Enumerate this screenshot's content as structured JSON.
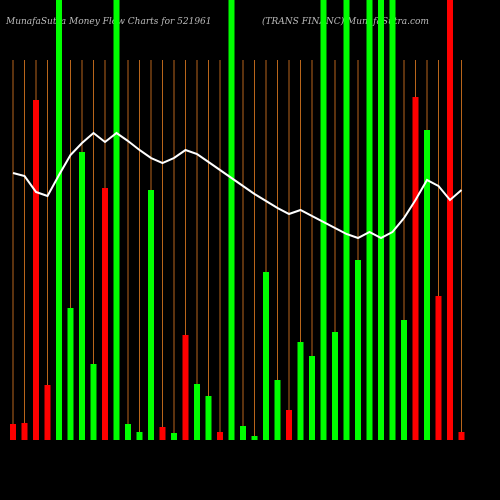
{
  "chart_data": {
    "type": "bar",
    "title": "MunafaSutra  Money Flow  Charts for 521961",
    "subtitle": "(TRANS FINANC) MunafaSutra.com",
    "ylim": [
      0,
      440
    ],
    "colors": {
      "up": "#00ff00",
      "down": "#ff0000",
      "guide": "#b8651b",
      "line": "#ffffff"
    },
    "series": [
      {
        "name": "money-flow",
        "directions": [
          "down",
          "down",
          "down",
          "down",
          "up",
          "up",
          "up",
          "up",
          "down",
          "up",
          "up",
          "up",
          "up",
          "down",
          "up",
          "down",
          "up",
          "up",
          "down",
          "up",
          "up",
          "up",
          "up",
          "up",
          "down",
          "up",
          "up",
          "up",
          "up",
          "up",
          "up",
          "up",
          "up",
          "up",
          "up",
          "down",
          "up",
          "down",
          "down",
          "down"
        ],
        "values": [
          16,
          17,
          340,
          55,
          440,
          132,
          288,
          76,
          252,
          440,
          16,
          8,
          250,
          13,
          7,
          105,
          56,
          44,
          8,
          440,
          14,
          4,
          168,
          60,
          30,
          98,
          84,
          440,
          108,
          440,
          180,
          440,
          440,
          440,
          120,
          343,
          310,
          144,
          440,
          8
        ]
      },
      {
        "name": "price",
        "values": [
          267,
          264,
          248,
          244,
          265,
          285,
          297,
          307,
          298,
          307,
          299,
          290,
          282,
          277,
          282,
          290,
          286,
          278,
          270,
          262,
          254,
          246,
          239,
          232,
          226,
          230,
          224,
          218,
          212,
          206,
          202,
          208,
          202,
          208,
          222,
          240,
          260,
          254,
          240,
          250
        ]
      }
    ]
  }
}
